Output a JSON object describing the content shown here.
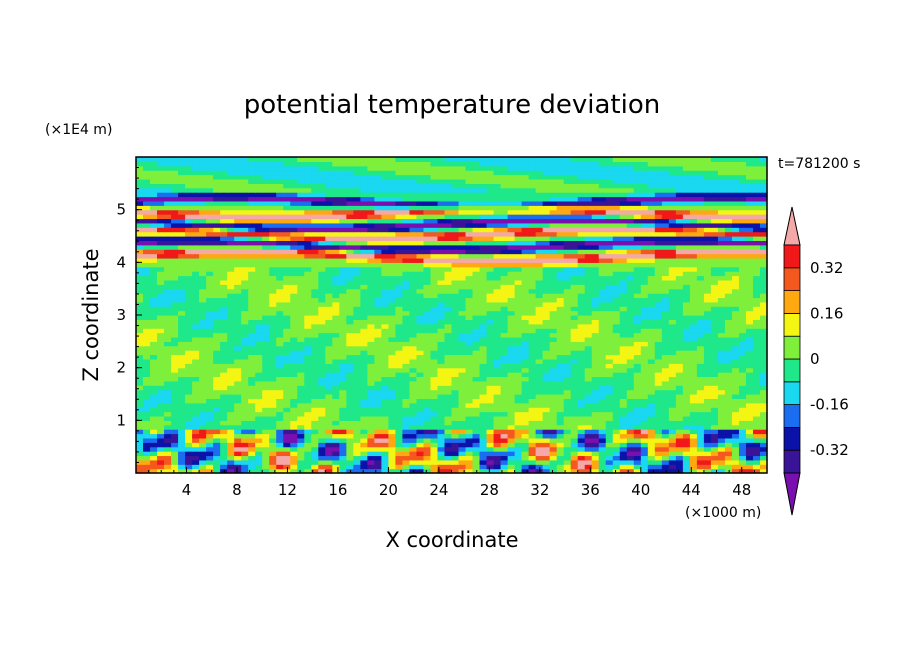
{
  "chart_data": {
    "type": "heatmap",
    "title": "potential temperature deviation",
    "xlabel": "X coordinate",
    "ylabel": "Z coordinate",
    "x_unit": "(×1000 m)",
    "y_unit": "(×1E4 m)",
    "time_label": "t=781200 s",
    "xlim": [
      0,
      50
    ],
    "ylim": [
      0,
      6
    ],
    "x_ticks": [
      4,
      8,
      12,
      16,
      20,
      24,
      28,
      32,
      36,
      40,
      44,
      48
    ],
    "y_ticks": [
      1,
      2,
      3,
      4,
      5
    ],
    "colorbar": {
      "levels": [
        -0.4,
        -0.32,
        -0.24,
        -0.16,
        -0.08,
        0,
        0.08,
        0.16,
        0.24,
        0.32,
        0.4
      ],
      "tick_labels": [
        "0.32",
        "0.16",
        "0",
        "-0.16",
        "-0.32"
      ],
      "tick_values": [
        0.32,
        0.16,
        0,
        -0.16,
        -0.32
      ],
      "colors": [
        "#7a0fb0",
        "#3a1498",
        "#0a12a8",
        "#1a6cf0",
        "#19d8f0",
        "#1ee88a",
        "#7ef03c",
        "#f5f514",
        "#ffa810",
        "#f5581e",
        "#f01818",
        "#f5a8a8"
      ],
      "extend": "both"
    },
    "layers": [
      {
        "z_range": [
          0.0,
          0.8
        ],
        "pattern": "mixed turbulent layer near surface",
        "mean": 0.0
      },
      {
        "z_range": [
          0.8,
          4.0
        ],
        "pattern": "near-neutral, weak deviations",
        "mean": 0.0
      },
      {
        "z_range": [
          4.0,
          5.6
        ],
        "pattern": "alternating warm/cold bands",
        "mean": 0.0
      },
      {
        "z_range": [
          5.6,
          6.0
        ],
        "pattern": "near-neutral",
        "mean": 0.0
      }
    ]
  }
}
